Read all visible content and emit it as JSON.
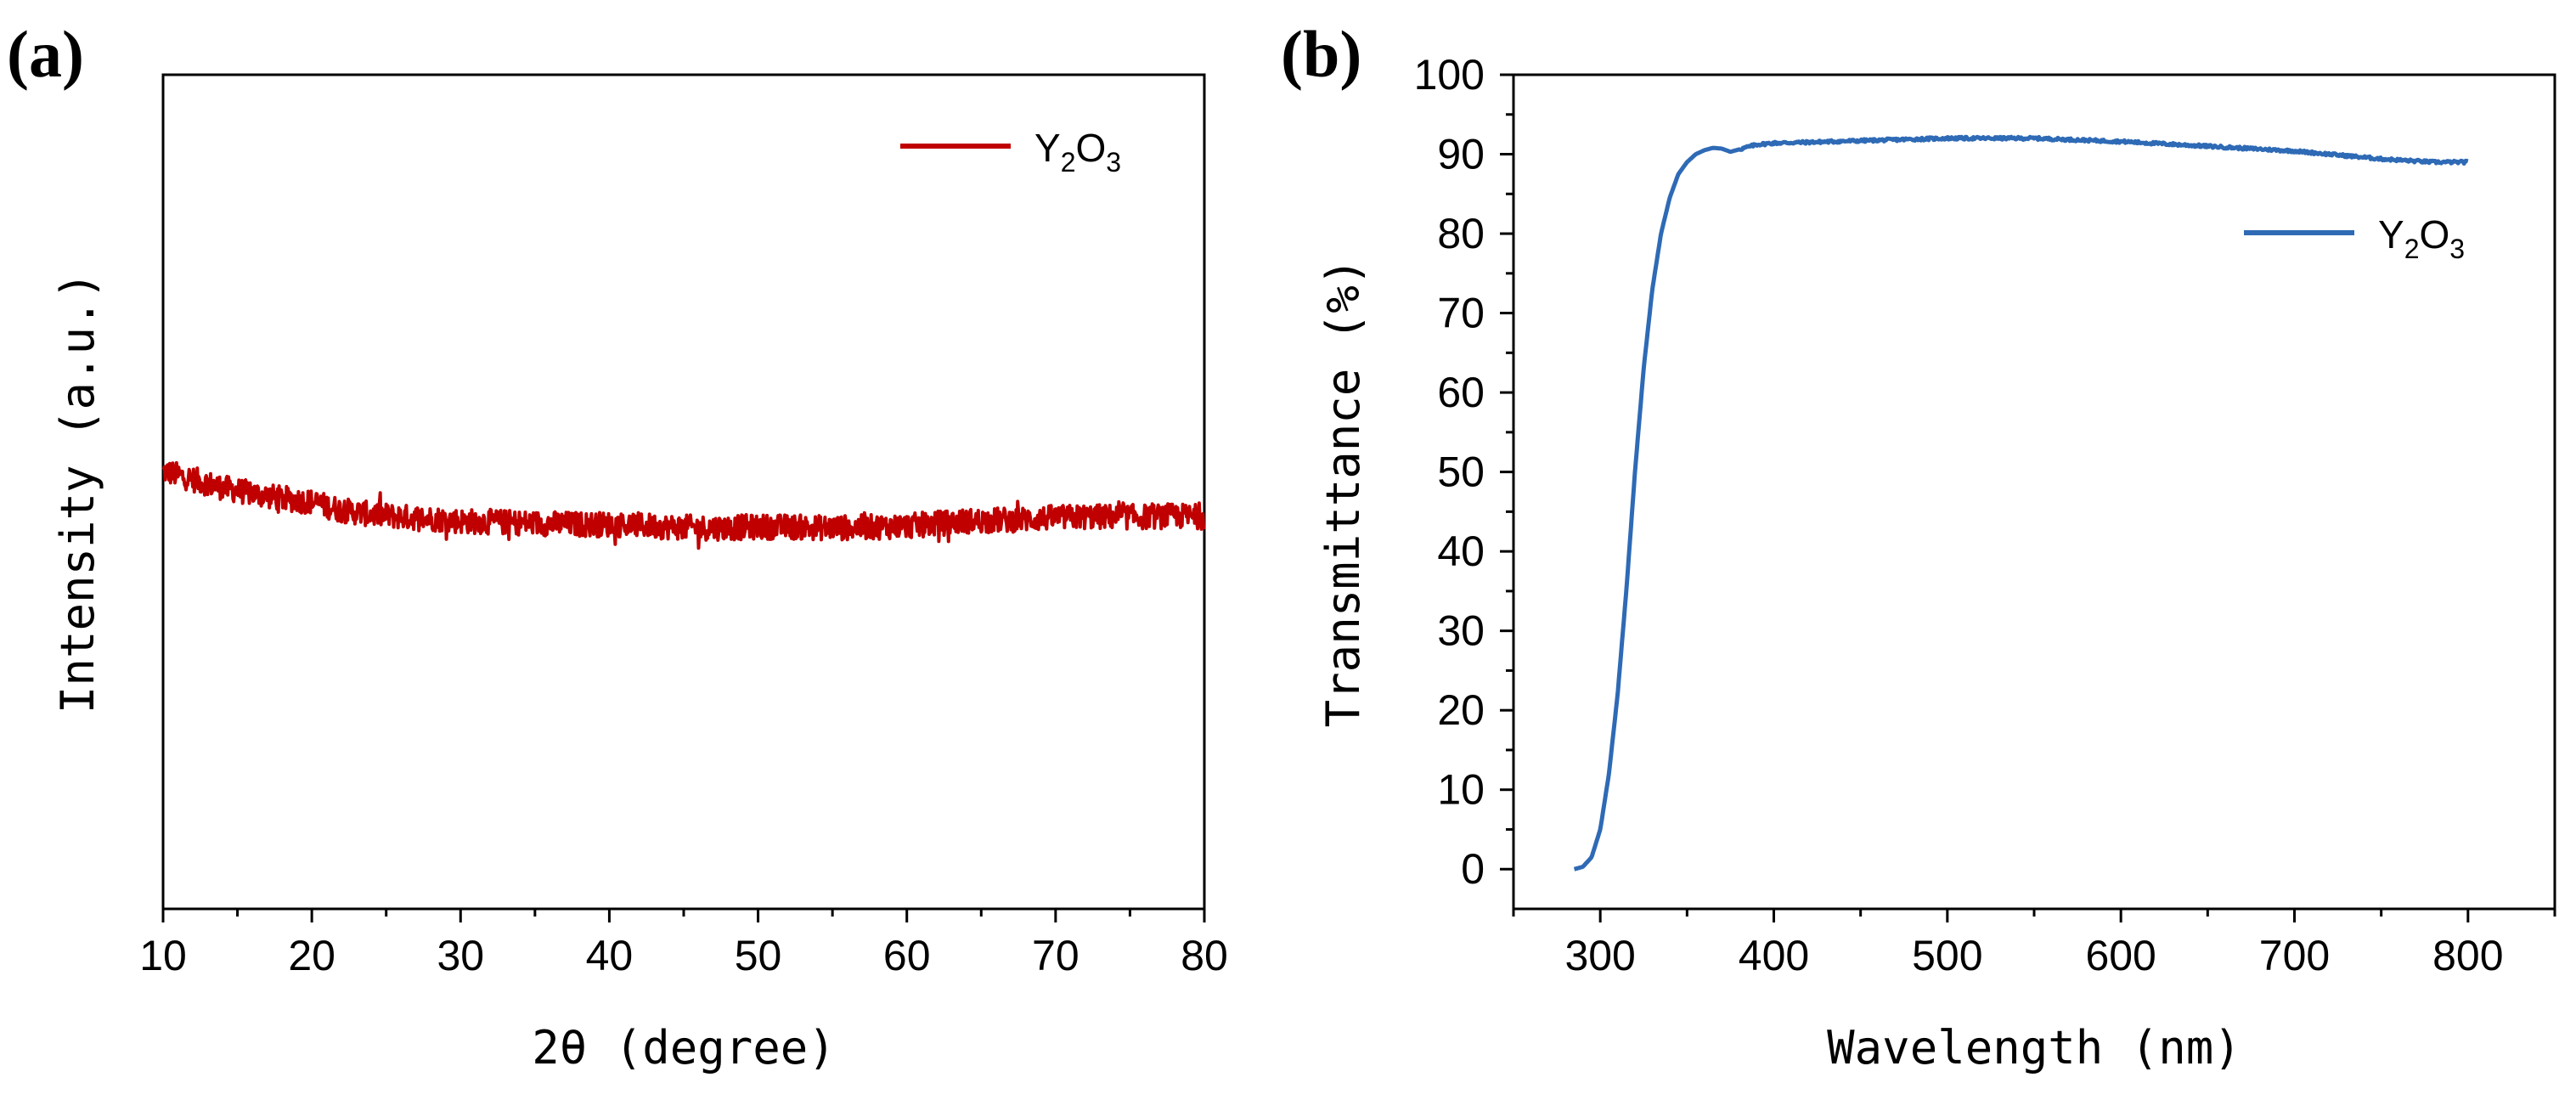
{
  "chart_data": [
    {
      "panel": "(a)",
      "type": "line",
      "xlabel": "2θ (degree)",
      "ylabel": "Intensity (a.u.)",
      "xlim": [
        10,
        80
      ],
      "ylim": [
        0,
        100
      ],
      "xticks": [
        10,
        20,
        30,
        40,
        50,
        60,
        70,
        80
      ],
      "yticks_shown": false,
      "grid": false,
      "legend_position": "top-right",
      "series": [
        {
          "name": "Y2O3",
          "legend": {
            "base": "Y",
            "sub1": "2",
            "mid": "O",
            "sub2": "3"
          },
          "color": "#c00000",
          "x": [
            10,
            12,
            14,
            16,
            18,
            20,
            22,
            24,
            26,
            28,
            30,
            32,
            34,
            36,
            38,
            40,
            42,
            44,
            46,
            48,
            50,
            52,
            54,
            56,
            58,
            60,
            62,
            64,
            66,
            68,
            70,
            72,
            74,
            76,
            78,
            80
          ],
          "y": [
            52.5,
            51.5,
            50.5,
            49.8,
            49.2,
            48.8,
            47.8,
            47.3,
            47.0,
            46.8,
            46.5,
            46.4,
            46.3,
            46.2,
            46.1,
            46.1,
            46.0,
            45.8,
            45.7,
            45.7,
            45.8,
            45.8,
            45.7,
            45.7,
            45.8,
            45.9,
            46.2,
            46.5,
            46.6,
            46.7,
            46.9,
            47.0,
            47.0,
            47.0,
            47.1,
            47.0
          ],
          "noise_amplitude": 1.5
        }
      ]
    },
    {
      "panel": "(b)",
      "type": "line",
      "xlabel": "Wavelength (nm)",
      "ylabel": "Transmittance (%)",
      "xlim": [
        250,
        850
      ],
      "ylim": [
        -5,
        100
      ],
      "xticks": [
        300,
        400,
        500,
        600,
        700,
        800
      ],
      "yticks": [
        0,
        10,
        20,
        30,
        40,
        50,
        60,
        70,
        80,
        90,
        100
      ],
      "grid": false,
      "legend_position": "top-right",
      "series": [
        {
          "name": "Y2O3",
          "legend": {
            "base": "Y",
            "sub1": "2",
            "mid": "O",
            "sub2": "3"
          },
          "color": "#2e6ab5",
          "x": [
            285,
            290,
            295,
            300,
            305,
            310,
            315,
            320,
            325,
            330,
            335,
            340,
            345,
            350,
            355,
            360,
            365,
            370,
            375,
            380,
            390,
            400,
            420,
            450,
            500,
            550,
            600,
            650,
            700,
            750,
            780,
            800
          ],
          "y": [
            0,
            0.3,
            1.5,
            5,
            12,
            22,
            35,
            50,
            63,
            73,
            80,
            84.5,
            87.5,
            89,
            90,
            90.5,
            90.8,
            90.7,
            90.3,
            90.6,
            91.2,
            91.4,
            91.5,
            91.7,
            92.0,
            92.0,
            91.6,
            91.0,
            90.4,
            89.4,
            89.0,
            89.0
          ]
        }
      ]
    }
  ]
}
